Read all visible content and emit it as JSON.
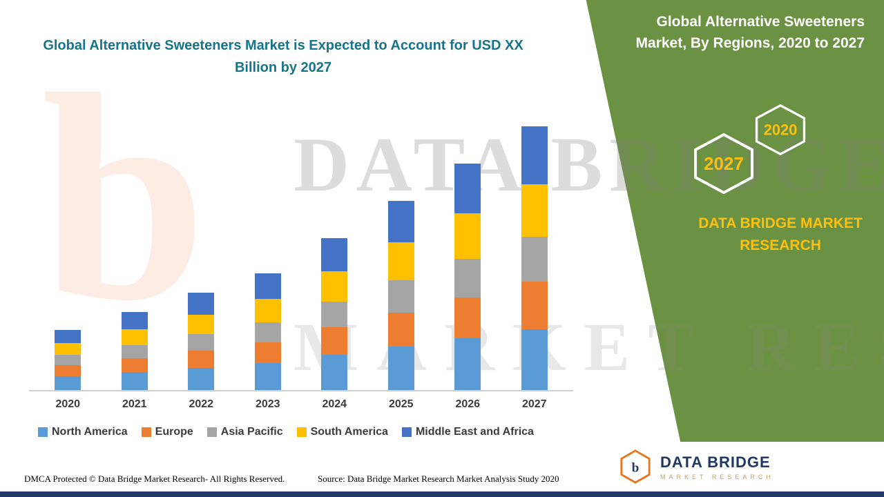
{
  "panel": {
    "title": "Global Alternative Sweeteners Market, By Regions, 2020 to 2027",
    "hexagons": [
      {
        "label": "2027"
      },
      {
        "label": "2020"
      }
    ],
    "brand": "DATA BRIDGE MARKET RESEARCH"
  },
  "watermark": {
    "line1": "DATA BRIDGE",
    "line2": "MARKET RESEARCH",
    "monogram": "b"
  },
  "footer": {
    "dmca": "DMCA Protected © Data Bridge Market Research- All Rights Reserved.",
    "source": "Source: Data Bridge Market Research Market Analysis Study 2020"
  },
  "logo": {
    "monogram": "b",
    "name": "DATA BRIDGE",
    "sub": "MARKET RESEARCH"
  },
  "colors": {
    "title_teal": "#16738a",
    "panel_green": "#6b9142",
    "accent_yellow": "#fdc010",
    "bottom_strip_navy": "#1f3864",
    "logo_orange": "#e87722"
  },
  "chart_data": {
    "type": "bar",
    "stacked": true,
    "title": "Global Alternative Sweeteners Market is Expected to Account for USD XX Billion by 2027",
    "xlabel": "",
    "ylabel": "",
    "y_axis_visible": false,
    "grid": false,
    "legend_position": "bottom",
    "units": "USD Billion (values undisclosed, shown as XX)",
    "categories": [
      "2020",
      "2021",
      "2022",
      "2023",
      "2024",
      "2025",
      "2026",
      "2027"
    ],
    "series": [
      {
        "name": "North America",
        "color": "#5b9bd5",
        "values": [
          2.0,
          2.6,
          3.2,
          3.9,
          5.1,
          6.3,
          7.5,
          8.8
        ]
      },
      {
        "name": "Europe",
        "color": "#ed7d31",
        "values": [
          1.6,
          2.0,
          2.5,
          3.0,
          4.0,
          4.9,
          5.9,
          6.9
        ]
      },
      {
        "name": "Asia Pacific",
        "color": "#a5a5a5",
        "values": [
          1.5,
          1.9,
          2.4,
          2.9,
          3.7,
          4.7,
          5.6,
          6.5
        ]
      },
      {
        "name": "South America",
        "color": "#ffc000",
        "values": [
          1.7,
          2.3,
          2.8,
          3.4,
          4.4,
          5.5,
          6.6,
          7.6
        ]
      },
      {
        "name": "Middle East and Africa",
        "color": "#4472c4",
        "values": [
          1.9,
          2.5,
          3.2,
          3.7,
          4.8,
          6.0,
          7.2,
          8.4
        ]
      }
    ],
    "approx_totals": [
      8.7,
      11.3,
      14.1,
      16.9,
      22.0,
      27.4,
      32.8,
      38.2
    ]
  }
}
